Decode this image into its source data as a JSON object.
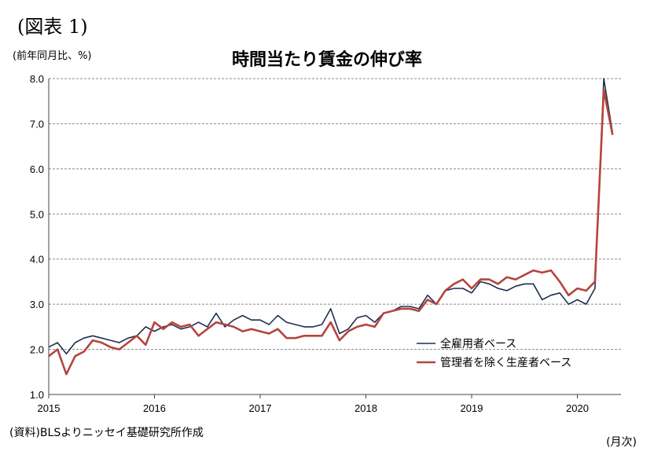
{
  "figure_label": "(図表 1)",
  "unit_label": "(前年同月比、%)",
  "source_note": "(資料)BLSよりニッセイ基礎研究所作成",
  "x_unit": "(月次)",
  "chart_data": {
    "type": "line",
    "title": "時間当たり賃金の伸び率",
    "ylim": [
      1.0,
      8.0
    ],
    "yticks": [
      "1.0",
      "2.0",
      "3.0",
      "4.0",
      "5.0",
      "6.0",
      "7.0",
      "8.0"
    ],
    "xticks": [
      "2015",
      "2016",
      "2017",
      "2018",
      "2019",
      "2020"
    ],
    "grid": "horizontal dashed",
    "legend_position": "bottom-right",
    "x": [
      "2015-01",
      "2015-02",
      "2015-03",
      "2015-04",
      "2015-05",
      "2015-06",
      "2015-07",
      "2015-08",
      "2015-09",
      "2015-10",
      "2015-11",
      "2015-12",
      "2016-01",
      "2016-02",
      "2016-03",
      "2016-04",
      "2016-05",
      "2016-06",
      "2016-07",
      "2016-08",
      "2016-09",
      "2016-10",
      "2016-11",
      "2016-12",
      "2017-01",
      "2017-02",
      "2017-03",
      "2017-04",
      "2017-05",
      "2017-06",
      "2017-07",
      "2017-08",
      "2017-09",
      "2017-10",
      "2017-11",
      "2017-12",
      "2018-01",
      "2018-02",
      "2018-03",
      "2018-04",
      "2018-05",
      "2018-06",
      "2018-07",
      "2018-08",
      "2018-09",
      "2018-10",
      "2018-11",
      "2018-12",
      "2019-01",
      "2019-02",
      "2019-03",
      "2019-04",
      "2019-05",
      "2019-06",
      "2019-07",
      "2019-08",
      "2019-09",
      "2019-10",
      "2019-11",
      "2019-12",
      "2020-01",
      "2020-02",
      "2020-03",
      "2020-04",
      "2020-05"
    ],
    "series": [
      {
        "name": "全雇用者ベース",
        "color": "#1f2f4f",
        "values": [
          2.05,
          2.15,
          1.9,
          2.15,
          2.25,
          2.3,
          2.25,
          2.2,
          2.15,
          2.25,
          2.3,
          2.5,
          2.4,
          2.5,
          2.55,
          2.45,
          2.5,
          2.6,
          2.5,
          2.8,
          2.5,
          2.65,
          2.75,
          2.65,
          2.65,
          2.55,
          2.75,
          2.6,
          2.55,
          2.5,
          2.5,
          2.55,
          2.9,
          2.35,
          2.45,
          2.7,
          2.75,
          2.6,
          2.8,
          2.85,
          2.95,
          2.95,
          2.9,
          3.2,
          3.0,
          3.3,
          3.35,
          3.35,
          3.25,
          3.5,
          3.45,
          3.35,
          3.3,
          3.4,
          3.45,
          3.45,
          3.1,
          3.2,
          3.25,
          3.0,
          3.1,
          3.0,
          3.35,
          8.0,
          6.8
        ]
      },
      {
        "name": "管理者を除く生産者ベース",
        "color": "#b5443f",
        "values": [
          1.85,
          2.0,
          1.45,
          1.85,
          1.95,
          2.2,
          2.15,
          2.05,
          2.0,
          2.15,
          2.3,
          2.1,
          2.6,
          2.45,
          2.6,
          2.5,
          2.55,
          2.3,
          2.45,
          2.6,
          2.55,
          2.5,
          2.4,
          2.45,
          2.4,
          2.35,
          2.45,
          2.25,
          2.25,
          2.3,
          2.3,
          2.3,
          2.6,
          2.2,
          2.4,
          2.5,
          2.55,
          2.5,
          2.8,
          2.85,
          2.9,
          2.9,
          2.85,
          3.1,
          3.0,
          3.3,
          3.45,
          3.55,
          3.35,
          3.55,
          3.55,
          3.45,
          3.6,
          3.55,
          3.65,
          3.75,
          3.7,
          3.75,
          3.5,
          3.2,
          3.35,
          3.3,
          3.5,
          7.75,
          6.75
        ]
      }
    ]
  }
}
